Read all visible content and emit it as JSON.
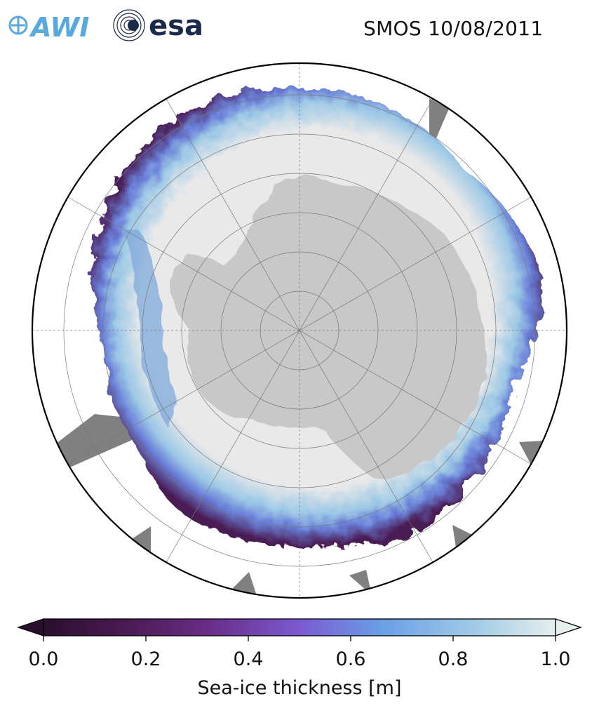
{
  "header": {
    "title": "SMOS 10/08/2011",
    "logos": [
      {
        "text": "AWI",
        "icon": "awi-logo",
        "color": "#5aa9dc"
      },
      {
        "text": "esa",
        "icon": "esa-logo",
        "color": "#1b2a4a"
      }
    ]
  },
  "map": {
    "projection": "south-polar-stereographic",
    "center": "South Pole",
    "gridlines": true,
    "land_color": "#c8c8c8",
    "no_data_color": "#808080",
    "open_ocean_color": "#ffffff"
  },
  "colorbar": {
    "label": "Sea-ice thickness [m]",
    "range": [
      0.0,
      1.0
    ],
    "extend": "both",
    "ticks": [
      "0.0",
      "0.2",
      "0.4",
      "0.6",
      "0.8",
      "1.0"
    ],
    "colormap": [
      "#2a0f2e",
      "#4a1a52",
      "#6a2f8a",
      "#7a5ad0",
      "#6a9ee6",
      "#9cc8e6",
      "#e6eeee"
    ]
  }
}
